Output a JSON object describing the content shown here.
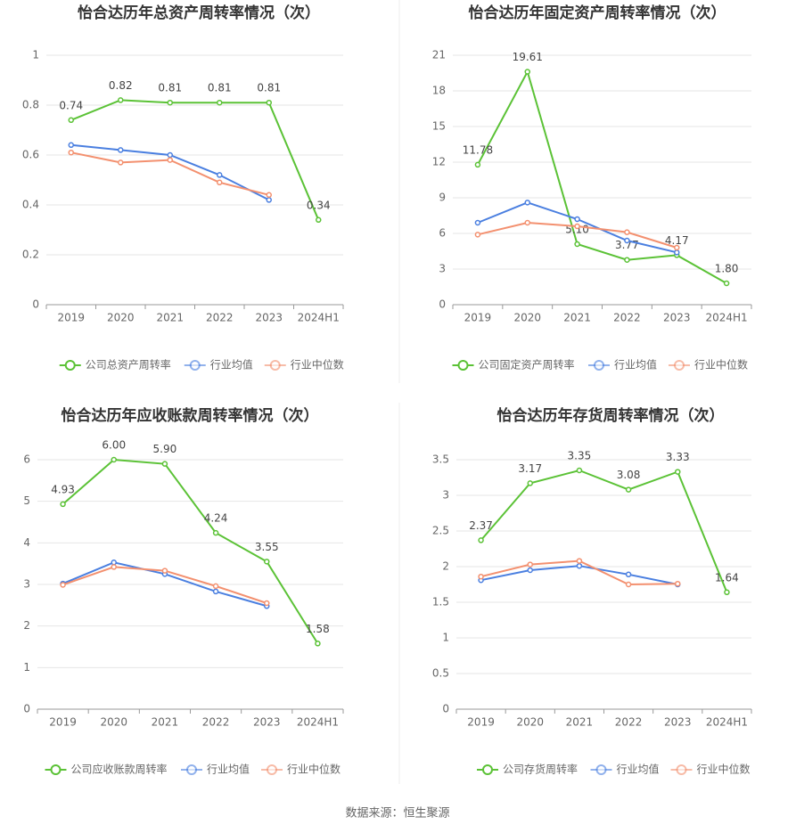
{
  "chart_data": [
    {
      "type": "line",
      "title": "怡合达历年总资产周转率情况（次）",
      "categories": [
        "2019",
        "2020",
        "2021",
        "2022",
        "2023",
        "2024H1"
      ],
      "series": [
        {
          "name": "公司总资产周转率",
          "color": "#5bc236",
          "values": [
            0.74,
            0.82,
            0.81,
            0.81,
            0.81,
            0.34
          ],
          "value_labels": [
            "0.74",
            "0.82",
            "0.81",
            "0.81",
            "0.81",
            "0.34"
          ]
        },
        {
          "name": "行业均值",
          "color": "#4a7fe0",
          "values": [
            0.64,
            0.62,
            0.6,
            0.52,
            0.42,
            null
          ]
        },
        {
          "name": "行业中位数",
          "color": "#f3906f",
          "values": [
            0.61,
            0.57,
            0.58,
            0.49,
            0.44,
            null
          ]
        }
      ],
      "ylim": [
        0,
        1
      ],
      "yticks": [
        0,
        0.2,
        0.4,
        0.6,
        0.8,
        1
      ],
      "grid": true
    },
    {
      "type": "line",
      "title": "怡合达历年固定资产周转率情况（次）",
      "categories": [
        "2019",
        "2020",
        "2021",
        "2022",
        "2023",
        "2024H1"
      ],
      "series": [
        {
          "name": "公司固定资产周转率",
          "color": "#5bc236",
          "values": [
            11.78,
            19.61,
            5.1,
            3.77,
            4.17,
            1.8
          ],
          "value_labels": [
            "11.78",
            "19.61",
            "5.10",
            "3.77",
            "4.17",
            "1.80"
          ]
        },
        {
          "name": "行业均值",
          "color": "#4a7fe0",
          "values": [
            6.9,
            8.6,
            7.2,
            5.4,
            4.4,
            null
          ]
        },
        {
          "name": "行业中位数",
          "color": "#f3906f",
          "values": [
            5.9,
            6.9,
            6.6,
            6.1,
            4.8,
            null
          ]
        }
      ],
      "ylim": [
        0,
        21
      ],
      "yticks": [
        0,
        3,
        6,
        9,
        12,
        15,
        18,
        21
      ],
      "grid": true
    },
    {
      "type": "line",
      "title": "怡合达历年应收账款周转率情况（次）",
      "categories": [
        "2019",
        "2020",
        "2021",
        "2022",
        "2023",
        "2024H1"
      ],
      "series": [
        {
          "name": "公司应收账款周转率",
          "color": "#5bc236",
          "values": [
            4.93,
            6.0,
            5.9,
            4.24,
            3.55,
            1.58
          ],
          "value_labels": [
            "4.93",
            "6.00",
            "5.90",
            "4.24",
            "3.55",
            "1.58"
          ]
        },
        {
          "name": "行业均值",
          "color": "#4a7fe0",
          "values": [
            3.02,
            3.53,
            3.25,
            2.83,
            2.48,
            null
          ]
        },
        {
          "name": "行业中位数",
          "color": "#f3906f",
          "values": [
            2.99,
            3.42,
            3.33,
            2.96,
            2.55,
            null
          ]
        }
      ],
      "ylim": [
        0,
        6.35
      ],
      "yticks": [
        0,
        1,
        2,
        3,
        4,
        5,
        6
      ],
      "grid": true
    },
    {
      "type": "line",
      "title": "怡合达历年存货周转率情况（次）",
      "categories": [
        "2019",
        "2020",
        "2021",
        "2022",
        "2023",
        "2024H1"
      ],
      "series": [
        {
          "name": "公司存货周转率",
          "color": "#5bc236",
          "values": [
            2.37,
            3.17,
            3.35,
            3.08,
            3.33,
            1.64
          ],
          "value_labels": [
            "2.37",
            "3.17",
            "3.35",
            "3.08",
            "3.33",
            "1.64"
          ]
        },
        {
          "name": "行业均值",
          "color": "#4a7fe0",
          "values": [
            1.81,
            1.95,
            2.01,
            1.89,
            1.75,
            null
          ]
        },
        {
          "name": "行业中位数",
          "color": "#f3906f",
          "values": [
            1.86,
            2.03,
            2.08,
            1.75,
            1.76,
            null
          ]
        }
      ],
      "ylim": [
        0,
        3.7
      ],
      "yticks": [
        0,
        0.5,
        1,
        1.5,
        2,
        2.5,
        3,
        3.5
      ],
      "grid": true
    }
  ],
  "source": "数据来源：恒生聚源"
}
